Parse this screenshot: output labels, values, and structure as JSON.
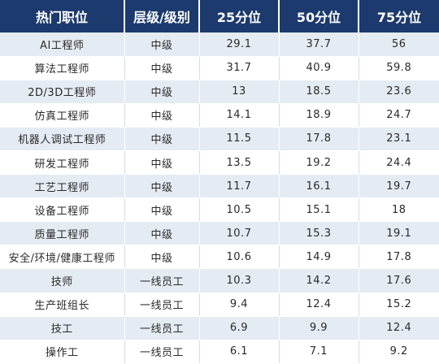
{
  "table": {
    "headers": [
      "热门职位",
      "层级/级别",
      "25分位",
      "50分位",
      "75分位"
    ],
    "rows": [
      [
        "AI工程师",
        "中级",
        "29.1",
        "37.7",
        "56"
      ],
      [
        "算法工程师",
        "中级",
        "31.7",
        "40.9",
        "59.8"
      ],
      [
        "2D/3D工程师",
        "中级",
        "13",
        "18.5",
        "23.6"
      ],
      [
        "仿真工程师",
        "中级",
        "14.1",
        "18.9",
        "24.7"
      ],
      [
        "机器人调试工程师",
        "中级",
        "11.5",
        "17.8",
        "23.1"
      ],
      [
        "研发工程师",
        "中级",
        "13.5",
        "19.2",
        "24.4"
      ],
      [
        "工艺工程师",
        "中级",
        "11.7",
        "16.1",
        "19.7"
      ],
      [
        "设备工程师",
        "中级",
        "10.5",
        "15.1",
        "18"
      ],
      [
        "质量工程师",
        "中级",
        "10.7",
        "15.3",
        "19.1"
      ],
      [
        "安全/环境/健康工程师",
        "中级",
        "10.6",
        "14.9",
        "17.8"
      ],
      [
        "技师",
        "一线员工",
        "10.3",
        "14.2",
        "17.6"
      ],
      [
        "生产班组长",
        "一线员工",
        "9.4",
        "12.4",
        "15.2"
      ],
      [
        "技工",
        "一线员工",
        "6.9",
        "9.9",
        "12.4"
      ],
      [
        "操作工",
        "一线员工",
        "6.1",
        "7.1",
        "9.2"
      ]
    ]
  },
  "colors": {
    "header_bg": "#1c3a6d",
    "header_text": "#ffffff",
    "stripe_bg": "#e4ebf3"
  }
}
